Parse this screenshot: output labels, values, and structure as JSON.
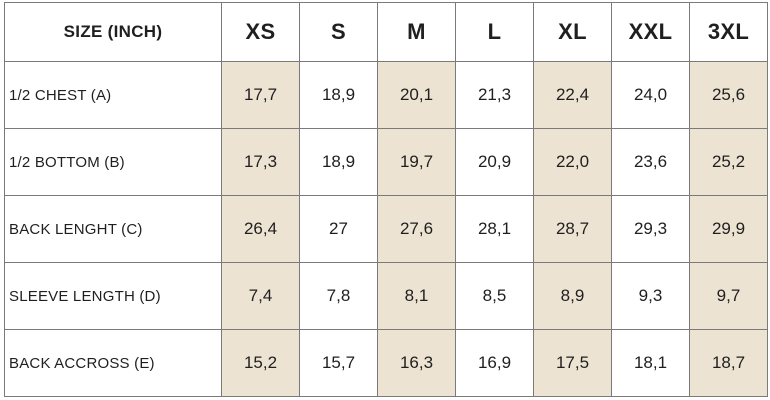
{
  "header": {
    "label": "SIZE (INCH)",
    "sizes": [
      "XS",
      "S",
      "M",
      "L",
      "XL",
      "XXL",
      "3XL"
    ]
  },
  "colors": {
    "shade": "#ede3d2",
    "border": "#7a7a7a"
  },
  "rows": [
    {
      "label": "1/2 CHEST (A)",
      "values": [
        "17,7",
        "18,9",
        "20,1",
        "21,3",
        "22,4",
        "24,0",
        "25,6"
      ]
    },
    {
      "label": "1/2 BOTTOM (B)",
      "values": [
        "17,3",
        "18,9",
        "19,7",
        "20,9",
        "22,0",
        "23,6",
        "25,2"
      ]
    },
    {
      "label": "BACK LENGHT (C)",
      "values": [
        "26,4",
        "27",
        "27,6",
        "28,1",
        "28,7",
        "29,3",
        "29,9"
      ]
    },
    {
      "label": "SLEEVE LENGTH (D)",
      "values": [
        "7,4",
        "7,8",
        "8,1",
        "8,5",
        "8,9",
        "9,3",
        "9,7"
      ]
    },
    {
      "label": "BACK ACCROSS (E)",
      "values": [
        "15,2",
        "15,7",
        "16,3",
        "16,9",
        "17,5",
        "18,1",
        "18,7"
      ]
    }
  ]
}
